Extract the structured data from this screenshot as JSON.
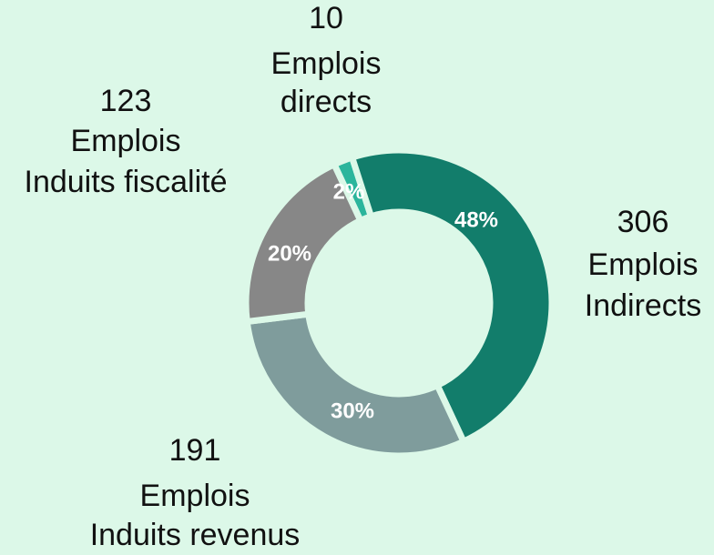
{
  "chart_data": {
    "type": "donut",
    "categories": [
      [
        "Emplois",
        "directs"
      ],
      [
        "Emplois",
        "Indirects"
      ],
      [
        "Emplois",
        "Induits revenus"
      ],
      [
        "Emplois",
        "Induits fiscalité"
      ]
    ],
    "counts": [
      10,
      306,
      191,
      123
    ],
    "values": [
      2,
      48,
      30,
      20
    ],
    "value_labels": [
      "2%",
      "48%",
      "30%",
      "20%"
    ],
    "colors": [
      "#2bb59c",
      "#127d6b",
      "#7f9c9c",
      "#878787"
    ]
  }
}
